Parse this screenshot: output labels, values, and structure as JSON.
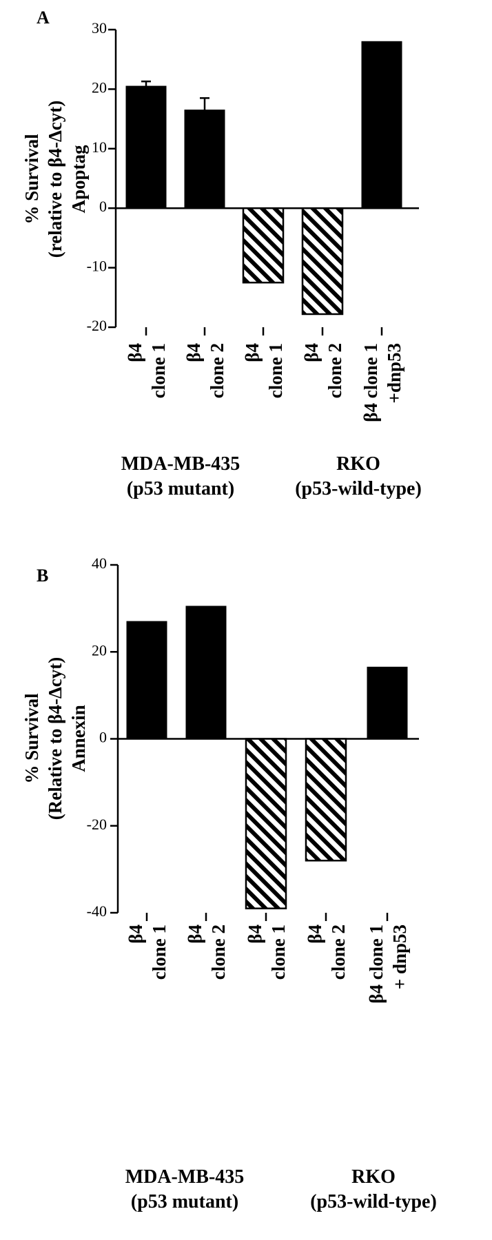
{
  "chart_data": [
    {
      "panel": "A",
      "type": "bar",
      "ylabel_lines": [
        "% Survival",
        "(relative to β4-Δcyt)",
        "Apoptag"
      ],
      "ylim": [
        -20,
        30
      ],
      "yticks": [
        30,
        20,
        10,
        0,
        -10,
        -20
      ],
      "categories": [
        [
          "β4",
          "clone 1"
        ],
        [
          "β4",
          "clone 2"
        ],
        [
          "β4",
          "clone 1"
        ],
        [
          "β4",
          "clone 2"
        ],
        [
          "β4 clone 1",
          "+dnp53"
        ]
      ],
      "values": [
        20.5,
        16.5,
        -12.5,
        -17.8,
        28
      ],
      "errors": [
        0.8,
        2.0,
        null,
        null,
        null
      ],
      "fills": [
        "solid",
        "solid",
        "hatched",
        "hatched",
        "solid"
      ],
      "groups": [
        {
          "lines": [
            "MDA-MB-435",
            "(p53 mutant)"
          ]
        },
        {
          "lines": [
            "RKO",
            "(p53-wild-type)"
          ]
        }
      ],
      "grid": false,
      "legend": "none"
    },
    {
      "panel": "B",
      "type": "bar",
      "ylabel_lines": [
        "% Survival",
        "(Relative to β4-Δcyt)",
        "Annexin"
      ],
      "ylim": [
        -40,
        40
      ],
      "yticks": [
        40,
        20,
        0,
        -20,
        -40
      ],
      "categories": [
        [
          "β4",
          "clone 1"
        ],
        [
          "β4",
          "clone 2"
        ],
        [
          "β4",
          "clone 1"
        ],
        [
          "β4",
          "clone 2"
        ],
        [
          "β4 clone 1",
          "+ dnp53"
        ]
      ],
      "values": [
        27,
        30.5,
        -39,
        -28,
        16.5
      ],
      "errors": [
        null,
        null,
        null,
        null,
        null
      ],
      "fills": [
        "solid",
        "solid",
        "hatched",
        "hatched",
        "solid"
      ],
      "groups": [
        {
          "lines": [
            "MDA-MB-435",
            "(p53 mutant)"
          ]
        },
        {
          "lines": [
            "RKO",
            "(p53-wild-type)"
          ]
        }
      ],
      "grid": false,
      "legend": "none"
    }
  ],
  "colors": {
    "bar": "#000000",
    "hatch": "#000000",
    "background": "#ffffff"
  }
}
